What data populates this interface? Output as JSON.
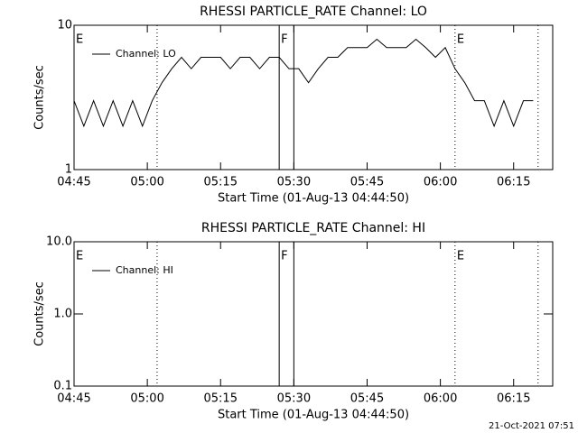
{
  "chart_data": [
    {
      "type": "line",
      "title": "RHESSI PARTICLE_RATE Channel: LO",
      "y_label": "Counts/sec",
      "x_label": "Start Time (01-Aug-13 04:44:50)",
      "log_y": true,
      "xlim": [
        "04:45",
        "06:23"
      ],
      "xticks": [
        "04:45",
        "05:00",
        "05:15",
        "05:30",
        "05:45",
        "06:00",
        "06:15"
      ],
      "ylim": [
        1,
        10
      ],
      "yticks": [
        1,
        10
      ],
      "annotations": [
        {
          "text": "E",
          "x": "04:45"
        },
        {
          "text": "F",
          "x": "05:27"
        },
        {
          "text": "E",
          "x": "06:03"
        }
      ],
      "vlines": [
        {
          "x": "05:02",
          "style": "dotted"
        },
        {
          "x": "05:27",
          "style": "solid"
        },
        {
          "x": "05:30",
          "style": "solid"
        },
        {
          "x": "06:03",
          "style": "dotted"
        },
        {
          "x": "06:20",
          "style": "dotted"
        }
      ],
      "x": [
        "04:45",
        "04:47",
        "04:49",
        "04:51",
        "04:53",
        "04:55",
        "04:57",
        "04:59",
        "05:01",
        "05:03",
        "05:05",
        "05:07",
        "05:09",
        "05:11",
        "05:13",
        "05:15",
        "05:17",
        "05:19",
        "05:21",
        "05:23",
        "05:25",
        "05:27",
        "05:29",
        "05:31",
        "05:33",
        "05:35",
        "05:37",
        "05:39",
        "05:41",
        "05:43",
        "05:45",
        "05:47",
        "05:49",
        "05:51",
        "05:53",
        "05:55",
        "05:57",
        "05:59",
        "06:01",
        "06:03",
        "06:05",
        "06:07",
        "06:09",
        "06:11",
        "06:13",
        "06:15",
        "06:17",
        "06:19"
      ],
      "series": [
        {
          "name": "Channel: LO",
          "color": "#000000",
          "values": [
            3,
            2,
            3,
            2,
            3,
            2,
            3,
            2,
            3,
            4,
            5,
            6,
            5,
            6,
            6,
            6,
            5,
            6,
            6,
            5,
            6,
            6,
            5,
            5,
            4,
            5,
            6,
            6,
            7,
            7,
            7,
            8,
            7,
            7,
            7,
            8,
            7,
            6,
            7,
            5,
            4,
            3,
            3,
            2,
            3,
            2,
            3,
            3
          ]
        }
      ]
    },
    {
      "type": "line",
      "title": "RHESSI PARTICLE_RATE Channel: HI",
      "y_label": "Counts/sec",
      "x_label": "Start Time (01-Aug-13 04:44:50)",
      "log_y": true,
      "xlim": [
        "04:45",
        "06:23"
      ],
      "xticks": [
        "04:45",
        "05:00",
        "05:15",
        "05:30",
        "05:45",
        "06:00",
        "06:15"
      ],
      "ylim": [
        0.1,
        10
      ],
      "yticks": [
        0.1,
        {
          "value": 1,
          "label": "1.0"
        },
        {
          "value": 10,
          "label": "10.0"
        }
      ],
      "annotations": [
        {
          "text": "E",
          "x": "04:45"
        },
        {
          "text": "F",
          "x": "05:27"
        },
        {
          "text": "E",
          "x": "06:03"
        }
      ],
      "vlines": [
        {
          "x": "05:02",
          "style": "dotted"
        },
        {
          "x": "05:27",
          "style": "solid"
        },
        {
          "x": "05:30",
          "style": "solid"
        },
        {
          "x": "06:03",
          "style": "dotted"
        },
        {
          "x": "06:20",
          "style": "dotted"
        }
      ],
      "x": [],
      "series": [
        {
          "name": "Channel: HI",
          "color": "#000000",
          "values": []
        }
      ]
    }
  ],
  "footer": "21-Oct-2021 07:51"
}
